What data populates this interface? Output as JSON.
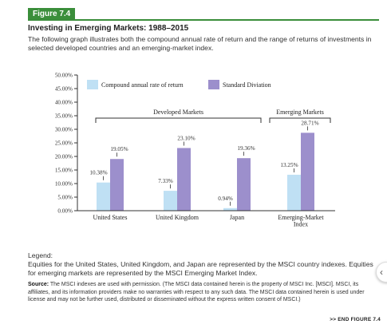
{
  "figure": {
    "tab": "Figure 7.4",
    "title": "Investing in Emerging Markets: 1988–2015",
    "description": "The following graph illustrates both the compound annual rate of return and the range of returns of investments in selected developed countries and an emerging-market index."
  },
  "chart_data": {
    "type": "bar",
    "categories": [
      "United States",
      "United Kingdom",
      "Japan",
      "Emerging-Market Index"
    ],
    "series": [
      {
        "name": "Compound annual rate of return",
        "values": [
          10.38,
          7.33,
          0.94,
          13.25
        ],
        "labels": [
          "10.38%",
          "7.33%",
          "0.94%",
          "13.25%"
        ],
        "color": "#bfe0f4"
      },
      {
        "name": "Standard Diviation",
        "values": [
          19.05,
          23.1,
          19.36,
          28.71
        ],
        "labels": [
          "19.05%",
          "23.10%",
          "19.36%",
          "28.71%"
        ],
        "color": "#9c8fcc"
      }
    ],
    "y_ticks": [
      "0.00%",
      "5.00%",
      "10.00%",
      "15.00%",
      "20.00%",
      "25.00%",
      "30.00%",
      "35.00%",
      "40.00%",
      "45.00%",
      "50.00%"
    ],
    "ylim": [
      0,
      50
    ],
    "groups": [
      {
        "label": "Developed Markets"
      },
      {
        "label": "Emerging Markets"
      }
    ],
    "grid": false,
    "legend_position": "top-left"
  },
  "legend_section": {
    "title": "Legend:",
    "text": "Equities for the United States, United Kingdom, and Japan are represented by the MSCI country indexes. Equities for emerging markets are represented by the MSCI Emerging Market Index."
  },
  "source": {
    "label": "Source:",
    "text": "The MSCI indexes are used with permission. (The MSCI data contained herein is the property of MSCI Inc. [MSCI]. MSCI, its affiliates, and its information providers make no warranties with respect to any such data. The MSCI data contained herein is used under license and may not be further used, distributed or disseminated without the express written consent of MSCI.)"
  },
  "end_marker": ">> END FIGURE 7.4",
  "scroll_button": "‹"
}
